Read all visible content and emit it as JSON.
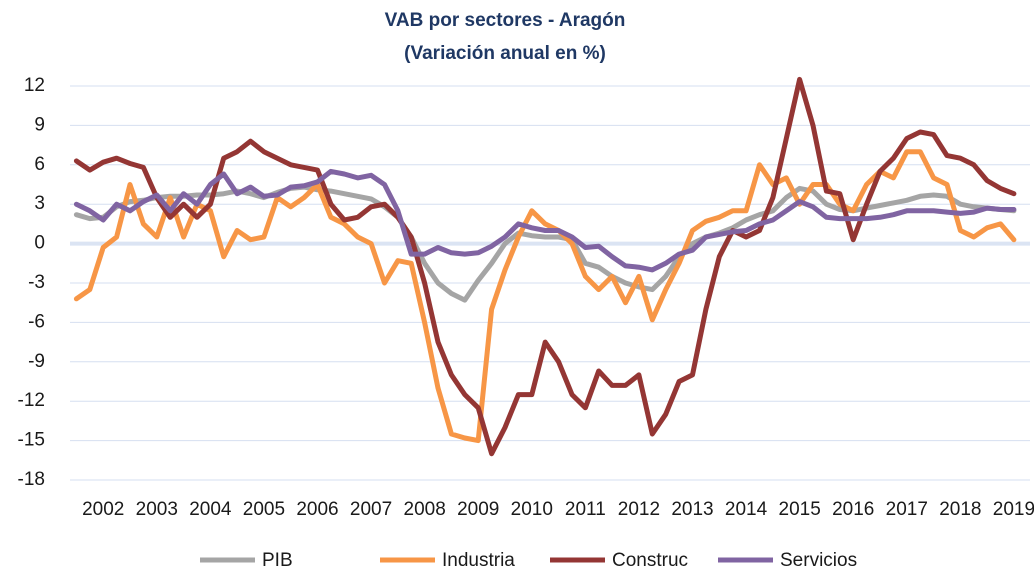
{
  "chart_data": {
    "type": "line",
    "title": "VAB por sectores - Aragón",
    "subtitle": "(Variación anual en %)",
    "x": [
      2001.5,
      2001.75,
      2002,
      2002.25,
      2002.5,
      2002.75,
      2003,
      2003.25,
      2003.5,
      2003.75,
      2004,
      2004.25,
      2004.5,
      2004.75,
      2005,
      2005.25,
      2005.5,
      2005.75,
      2006,
      2006.25,
      2006.5,
      2006.75,
      2007,
      2007.25,
      2007.5,
      2007.75,
      2008,
      2008.25,
      2008.5,
      2008.75,
      2009,
      2009.25,
      2009.5,
      2009.75,
      2010,
      2010.25,
      2010.5,
      2010.75,
      2011,
      2011.25,
      2011.5,
      2011.75,
      2012,
      2012.25,
      2012.5,
      2012.75,
      2013,
      2013.25,
      2013.5,
      2013.75,
      2014,
      2014.25,
      2014.5,
      2014.75,
      2015,
      2015.25,
      2015.5,
      2015.75,
      2016,
      2016.25,
      2016.5,
      2016.75,
      2017,
      2017.25,
      2017.5,
      2017.75,
      2018,
      2018.25,
      2018.5,
      2018.75,
      2019
    ],
    "series": [
      {
        "name": "PIB",
        "color": "#a5a5a5",
        "values": [
          2.2,
          1.9,
          2.0,
          2.8,
          3.2,
          3.3,
          3.5,
          3.6,
          3.6,
          3.7,
          3.7,
          3.8,
          4.0,
          3.8,
          3.5,
          3.9,
          4.2,
          4.3,
          4.1,
          4.0,
          3.8,
          3.6,
          3.4,
          2.8,
          2.0,
          0.5,
          -1.5,
          -3.0,
          -3.8,
          -4.3,
          -2.8,
          -1.5,
          0.0,
          0.8,
          0.6,
          0.5,
          0.5,
          0.3,
          -1.5,
          -1.8,
          -2.5,
          -3.0,
          -3.3,
          -3.5,
          -2.5,
          -1.0,
          0.0,
          0.5,
          0.8,
          1.2,
          1.8,
          2.2,
          2.5,
          3.5,
          4.2,
          4.0,
          3.0,
          2.6,
          2.5,
          2.7,
          2.9,
          3.1,
          3.3,
          3.6,
          3.7,
          3.6,
          3.0,
          2.8,
          2.7,
          2.6,
          2.5
        ]
      },
      {
        "name": "Industria",
        "color": "#f79646",
        "values": [
          -4.2,
          -3.5,
          -0.3,
          0.5,
          4.5,
          1.5,
          0.5,
          3.5,
          0.5,
          3.0,
          2.5,
          -1.0,
          1.0,
          0.3,
          0.5,
          3.5,
          2.8,
          3.5,
          4.5,
          2.0,
          1.5,
          0.5,
          0.0,
          -3.0,
          -1.3,
          -1.5,
          -6.0,
          -11.0,
          -14.5,
          -14.8,
          -15.0,
          -5.0,
          -2.0,
          0.5,
          2.5,
          1.5,
          1.0,
          0.0,
          -2.5,
          -3.5,
          -2.5,
          -4.5,
          -2.5,
          -5.8,
          -3.5,
          -1.5,
          1.0,
          1.7,
          2.0,
          2.5,
          2.5,
          6.0,
          4.5,
          5.0,
          3.0,
          4.5,
          4.5,
          3.0,
          2.5,
          4.5,
          5.5,
          5.0,
          7.0,
          7.0,
          5.0,
          4.5,
          1.0,
          0.5,
          1.2,
          1.5,
          0.3
        ]
      },
      {
        "name": "Construc",
        "color": "#943634",
        "values": [
          6.3,
          5.6,
          6.2,
          6.5,
          6.1,
          5.8,
          3.5,
          2.0,
          3.0,
          2.0,
          3.0,
          6.5,
          7.0,
          7.8,
          7.0,
          6.5,
          6.0,
          5.8,
          5.6,
          3.0,
          1.8,
          2.0,
          2.8,
          3.0,
          2.0,
          0.5,
          -3.0,
          -7.5,
          -10.0,
          -11.5,
          -12.5,
          -16.0,
          -14.0,
          -11.5,
          -11.5,
          -7.5,
          -9.0,
          -11.5,
          -12.5,
          -9.7,
          -10.8,
          -10.8,
          -10.0,
          -14.5,
          -13.0,
          -10.5,
          -10.0,
          -5.0,
          -1.0,
          1.0,
          0.5,
          1.0,
          3.5,
          8.0,
          12.5,
          9.0,
          4.0,
          3.8,
          0.3,
          3.0,
          5.5,
          6.5,
          8.0,
          8.5,
          8.3,
          6.7,
          6.5,
          6.0,
          4.8,
          4.2,
          3.8
        ]
      },
      {
        "name": "Servicios",
        "color": "#8064a2",
        "values": [
          3.0,
          2.5,
          1.8,
          3.0,
          2.5,
          3.2,
          3.7,
          2.5,
          3.8,
          3.0,
          4.5,
          5.3,
          3.8,
          4.3,
          3.6,
          3.7,
          4.3,
          4.4,
          4.7,
          5.5,
          5.3,
          5.0,
          5.2,
          4.5,
          2.5,
          -0.8,
          -0.8,
          -0.3,
          -0.7,
          -0.8,
          -0.7,
          -0.2,
          0.5,
          1.5,
          1.2,
          1.0,
          1.0,
          0.5,
          -0.3,
          -0.2,
          -1.0,
          -1.7,
          -1.8,
          -2.0,
          -1.5,
          -0.8,
          -0.5,
          0.5,
          0.7,
          0.9,
          1.0,
          1.5,
          1.8,
          2.5,
          3.2,
          2.8,
          2.0,
          1.9,
          1.9,
          1.9,
          2.0,
          2.2,
          2.5,
          2.5,
          2.5,
          2.4,
          2.3,
          2.4,
          2.7,
          2.6,
          2.6
        ]
      }
    ],
    "xlim": [
      2001.38,
      2019.3
    ],
    "xticks": [
      2002,
      2003,
      2004,
      2005,
      2006,
      2007,
      2008,
      2009,
      2010,
      2011,
      2012,
      2013,
      2014,
      2015,
      2016,
      2017,
      2018,
      2019
    ],
    "ylim": [
      -18,
      12
    ],
    "yticks": [
      -18,
      -15,
      -12,
      -9,
      -6,
      -3,
      0,
      3,
      6,
      9,
      12
    ],
    "grid": true,
    "legend": "bottom"
  }
}
